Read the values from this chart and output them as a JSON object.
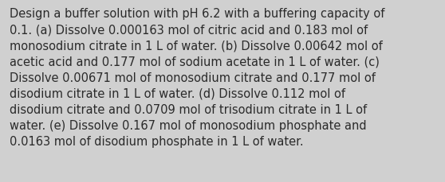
{
  "lines": [
    "Design a buffer solution with pH 6.2 with a buffering capacity of",
    "0.1. (a) Dissolve 0.000163 mol of citric acid and 0.183 mol of",
    "monosodium citrate in 1 L of water. (b) Dissolve 0.00642 mol of",
    "acetic acid and 0.177 mol of sodium acetate in 1 L of water. (c)",
    "Dissolve 0.00671 mol of monosodium citrate and 0.177 mol of",
    "disodium citrate in 1 L of water. (d) Dissolve 0.112 mol of",
    "disodium citrate and 0.0709 mol of trisodium citrate in 1 L of",
    "water. (e) Dissolve 0.167 mol of monosodium phosphate and",
    "0.0163 mol of disodium phosphate in 1 L of water."
  ],
  "background_color": "#d0d0d0",
  "text_color": "#2a2a2a",
  "font_size": 10.5,
  "fig_width": 5.58,
  "fig_height": 2.3,
  "dpi": 100
}
